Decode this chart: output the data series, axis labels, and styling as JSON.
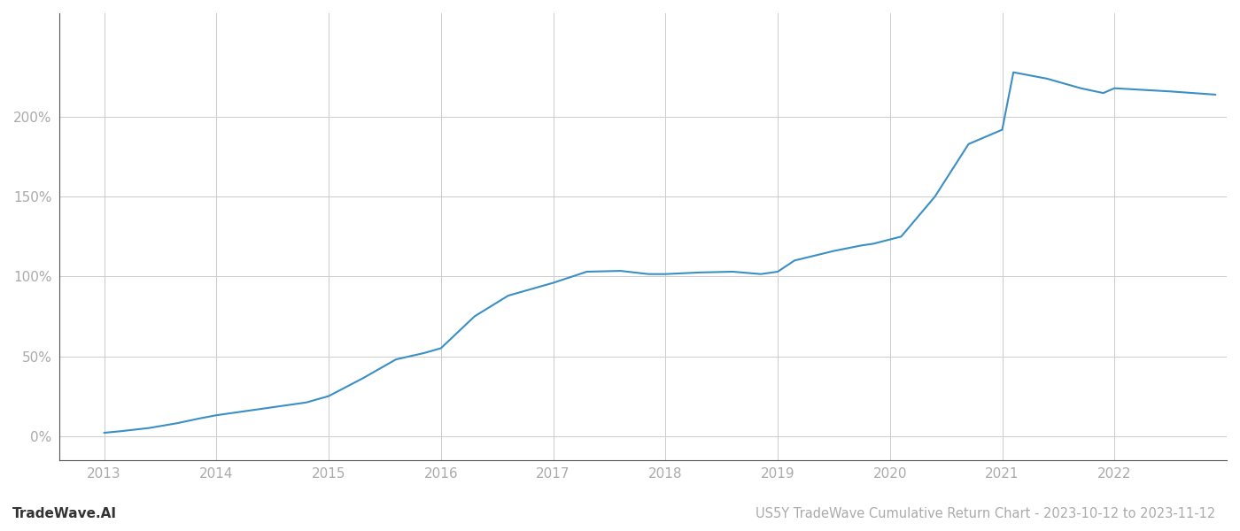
{
  "title": "US5Y TradeWave Cumulative Return Chart - 2023-10-12 to 2023-11-12",
  "watermark": "TradeWave.AI",
  "line_color": "#3a8fc4",
  "background_color": "#ffffff",
  "grid_color": "#cccccc",
  "x_values": [
    2013.0,
    2013.15,
    2013.4,
    2013.65,
    2013.85,
    2014.0,
    2014.2,
    2014.5,
    2014.8,
    2015.0,
    2015.3,
    2015.6,
    2015.85,
    2016.0,
    2016.3,
    2016.6,
    2016.85,
    2017.0,
    2017.3,
    2017.6,
    2017.85,
    2018.0,
    2018.3,
    2018.6,
    2018.85,
    2019.0,
    2019.15,
    2019.5,
    2019.75,
    2019.85,
    2020.1,
    2020.4,
    2020.7,
    2020.9,
    2021.0,
    2021.1,
    2021.4,
    2021.7,
    2021.9,
    2022.0,
    2022.5,
    2022.9
  ],
  "y_values": [
    2.0,
    3.0,
    5.0,
    8.0,
    11.0,
    13.0,
    15.0,
    18.0,
    21.0,
    25.0,
    36.0,
    48.0,
    52.0,
    55.0,
    75.0,
    88.0,
    93.0,
    96.0,
    103.0,
    103.5,
    101.5,
    101.5,
    102.5,
    103.0,
    101.5,
    103.0,
    110.0,
    116.0,
    119.5,
    120.5,
    125.0,
    150.0,
    183.0,
    189.0,
    192.0,
    228.0,
    224.0,
    218.0,
    215.0,
    218.0,
    216.0,
    214.0
  ],
  "yticks": [
    0,
    50,
    100,
    150,
    200
  ],
  "ytick_labels": [
    "0%",
    "50%",
    "100%",
    "150%",
    "200%"
  ],
  "xticks": [
    2013,
    2014,
    2015,
    2016,
    2017,
    2018,
    2019,
    2020,
    2021,
    2022
  ],
  "xlim": [
    2012.6,
    2023.0
  ],
  "ylim": [
    -15,
    265
  ],
  "line_width": 1.5,
  "title_fontsize": 10.5,
  "watermark_fontsize": 11,
  "tick_fontsize": 11,
  "tick_color": "#aaaaaa",
  "spine_color": "#555555"
}
